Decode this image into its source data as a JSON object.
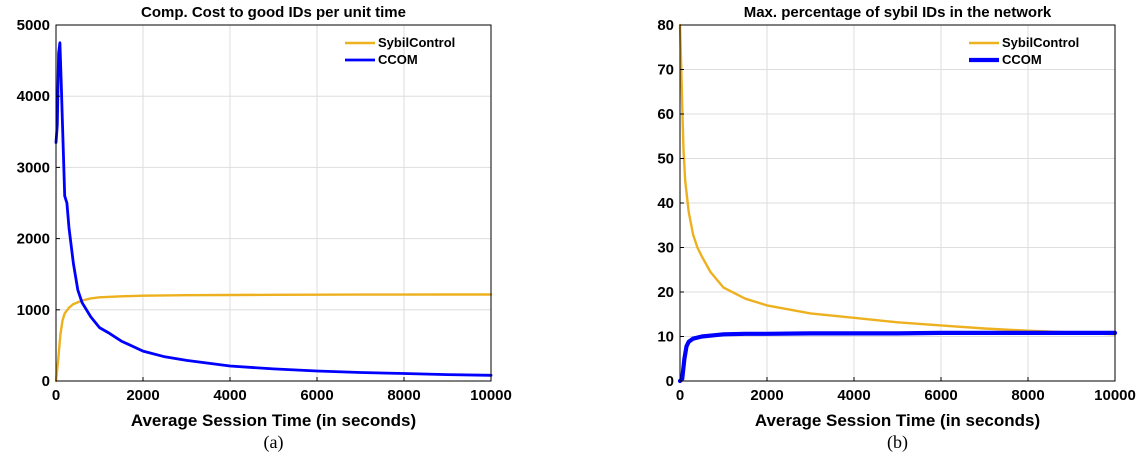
{
  "colors": {
    "sybilcontrol": "#EDB120",
    "ccom": "#0000FF"
  },
  "chart_data": [
    {
      "type": "line",
      "title": "Comp. Cost to good IDs per unit time",
      "xlabel": "Average Session Time (in seconds)",
      "ylabel": "",
      "caption": "(a)",
      "xlim": [
        0,
        10000
      ],
      "ylim": [
        0,
        5000
      ],
      "xticks": [
        0,
        2000,
        4000,
        6000,
        8000,
        10000
      ],
      "yticks": [
        0,
        1000,
        2000,
        3000,
        4000,
        5000
      ],
      "grid": true,
      "legend": "top-right",
      "series": [
        {
          "name": "SybilControl",
          "x": [
            0,
            50,
            100,
            150,
            200,
            300,
            400,
            600,
            800,
            1000,
            1500,
            2000,
            3000,
            4000,
            5000,
            6000,
            7000,
            8000,
            9000,
            10000
          ],
          "y": [
            0,
            300,
            650,
            850,
            950,
            1030,
            1080,
            1130,
            1160,
            1175,
            1190,
            1198,
            1205,
            1208,
            1210,
            1212,
            1213,
            1214,
            1215,
            1215
          ]
        },
        {
          "name": "CCOM",
          "x": [
            0,
            30,
            60,
            90,
            120,
            150,
            200,
            250,
            300,
            400,
            500,
            600,
            800,
            1000,
            1200,
            1500,
            2000,
            2500,
            3000,
            4000,
            5000,
            6000,
            7000,
            8000,
            9000,
            10000
          ],
          "y": [
            3350,
            3600,
            4600,
            4750,
            4200,
            3600,
            2600,
            2500,
            2150,
            1650,
            1280,
            1100,
            900,
            750,
            680,
            560,
            420,
            340,
            290,
            210,
            170,
            140,
            120,
            105,
            90,
            80
          ]
        }
      ]
    },
    {
      "type": "line",
      "title": "Max. percentage of sybil IDs in the network",
      "xlabel": "Average Session Time (in seconds)",
      "ylabel": "",
      "caption": "(b)",
      "xlim": [
        0,
        10000
      ],
      "ylim": [
        0,
        80
      ],
      "xticks": [
        0,
        2000,
        4000,
        6000,
        8000,
        10000
      ],
      "yticks": [
        0,
        10,
        20,
        30,
        40,
        50,
        60,
        70,
        80
      ],
      "grid": true,
      "legend": "top-right",
      "series": [
        {
          "name": "SybilControl",
          "x": [
            0,
            30,
            50,
            80,
            120,
            200,
            300,
            400,
            500,
            700,
            1000,
            1500,
            2000,
            3000,
            4000,
            5000,
            6000,
            7000,
            8000,
            9000,
            10000
          ],
          "y": [
            80,
            70,
            62,
            52,
            45,
            38,
            33,
            30,
            28,
            24.5,
            21,
            18.5,
            17,
            15.2,
            14.2,
            13.2,
            12.5,
            11.8,
            11.3,
            10.9,
            10.5
          ]
        },
        {
          "name": "CCOM",
          "x": [
            0,
            50,
            100,
            150,
            200,
            300,
            500,
            800,
            1000,
            1500,
            2000,
            3000,
            4000,
            5000,
            6000,
            7000,
            8000,
            9000,
            10000
          ],
          "y": [
            0,
            0.5,
            5,
            7.8,
            8.8,
            9.5,
            10,
            10.3,
            10.5,
            10.6,
            10.6,
            10.7,
            10.7,
            10.7,
            10.8,
            10.8,
            10.8,
            10.8,
            10.8
          ]
        }
      ]
    }
  ]
}
